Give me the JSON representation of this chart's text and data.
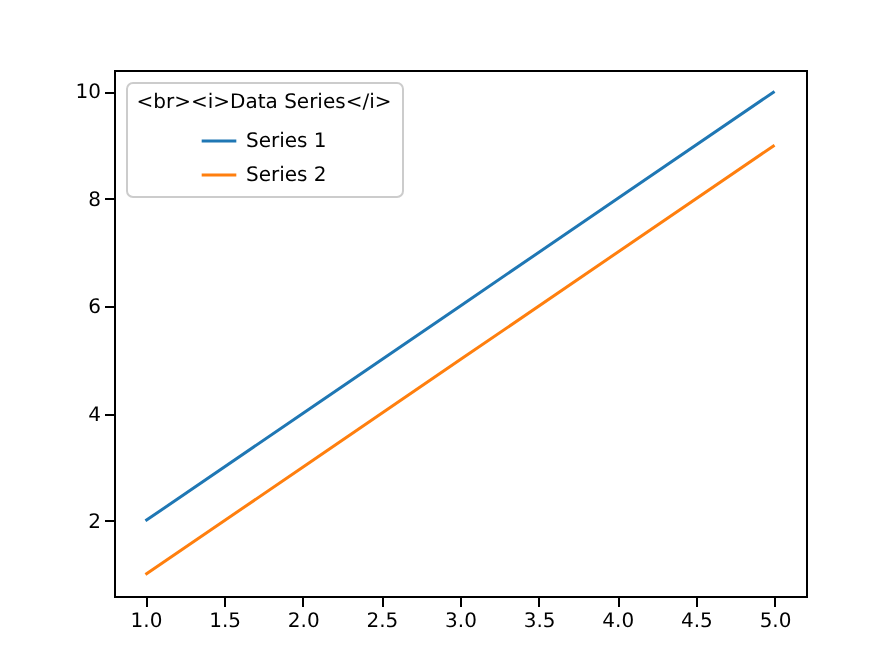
{
  "chart_data": {
    "type": "line",
    "legend_title": "<br><i>Data Series</i>",
    "x": [
      1,
      2,
      3,
      4,
      5
    ],
    "series": [
      {
        "name": "Series 1",
        "color": "#1f77b4",
        "values": [
          2,
          4,
          6,
          8,
          10
        ]
      },
      {
        "name": "Series 2",
        "color": "#ff7f0e",
        "values": [
          1,
          3,
          5,
          7,
          9
        ]
      }
    ],
    "xlim": [
      0.8,
      5.2
    ],
    "xticks": [
      {
        "value": 1,
        "label": "1.0"
      },
      {
        "value": 1.5,
        "label": "1.5"
      },
      {
        "value": 2,
        "label": "2.0"
      },
      {
        "value": 2.5,
        "label": "2.5"
      },
      {
        "value": 3,
        "label": "3.0"
      },
      {
        "value": 3.5,
        "label": "3.5"
      },
      {
        "value": 4,
        "label": "4.0"
      },
      {
        "value": 4.5,
        "label": "4.5"
      },
      {
        "value": 5,
        "label": "5.0"
      }
    ],
    "ylim": [
      0.6,
      10.4
    ],
    "yticks": [
      2,
      4,
      6,
      8,
      10
    ],
    "legend": "top left",
    "line_style": "solid",
    "marker": "none"
  }
}
